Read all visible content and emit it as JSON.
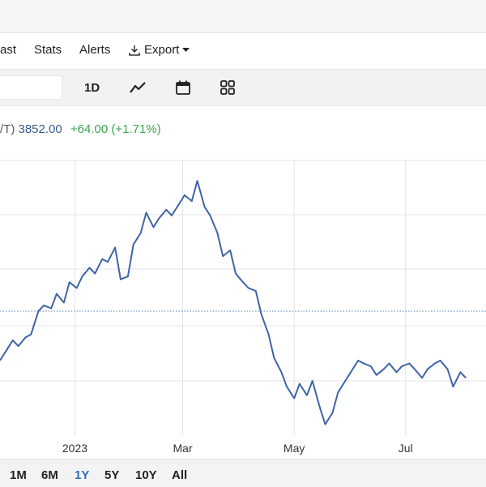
{
  "nav": {
    "items": [
      "ast",
      "Stats",
      "Alerts"
    ],
    "export_label": "Export"
  },
  "toolbar": {
    "interval_label": "1D",
    "icons": [
      "line-chart-icon",
      "calendar-icon",
      "grid-icon"
    ]
  },
  "quote": {
    "symbol_fragment": "/T)",
    "price": "3852.00",
    "change": "+64.00 (+1.71%)",
    "price_color": "#3a5b8c",
    "change_color": "#3fa34d"
  },
  "range": {
    "options": [
      "1M",
      "6M",
      "1Y",
      "5Y",
      "10Y",
      "All"
    ],
    "selected": "1Y",
    "active_color": "#2f6fbf"
  },
  "chart_data": {
    "type": "line",
    "line_color": "#3e64a6",
    "grid": true,
    "x_tick_labels": [
      "2023",
      "Mar",
      "May",
      "Jul"
    ],
    "x_tick_dates": [
      "2023-01-01",
      "2023-03-01",
      "2023-05-01",
      "2023-07-01"
    ],
    "reference_line": "dotted horizontal previous-close level",
    "series": [
      {
        "values": [
          [
            "2022-11-21",
            5.6
          ],
          [
            "2022-11-24",
            5.9
          ],
          [
            "2022-11-28",
            6.3
          ],
          [
            "2022-12-01",
            6.1
          ],
          [
            "2022-12-05",
            6.4
          ],
          [
            "2022-12-08",
            6.5
          ],
          [
            "2022-12-12",
            7.3
          ],
          [
            "2022-12-15",
            7.5
          ],
          [
            "2022-12-19",
            7.4
          ],
          [
            "2022-12-22",
            7.9
          ],
          [
            "2022-12-26",
            7.6
          ],
          [
            "2022-12-29",
            8.3
          ],
          [
            "2023-01-02",
            8.1
          ],
          [
            "2023-01-05",
            8.5
          ],
          [
            "2023-01-09",
            8.8
          ],
          [
            "2023-01-12",
            8.6
          ],
          [
            "2023-01-16",
            9.1
          ],
          [
            "2023-01-19",
            9.0
          ],
          [
            "2023-01-23",
            9.5
          ],
          [
            "2023-01-26",
            8.4
          ],
          [
            "2023-01-30",
            8.5
          ],
          [
            "2023-02-02",
            9.6
          ],
          [
            "2023-02-06",
            10.0
          ],
          [
            "2023-02-09",
            10.7
          ],
          [
            "2023-02-13",
            10.2
          ],
          [
            "2023-02-16",
            10.5
          ],
          [
            "2023-02-20",
            10.8
          ],
          [
            "2023-02-23",
            10.6
          ],
          [
            "2023-02-27",
            11.0
          ],
          [
            "2023-03-02",
            11.3
          ],
          [
            "2023-03-06",
            11.1
          ],
          [
            "2023-03-09",
            11.8
          ],
          [
            "2023-03-13",
            10.9
          ],
          [
            "2023-03-16",
            10.6
          ],
          [
            "2023-03-20",
            10.0
          ],
          [
            "2023-03-23",
            9.2
          ],
          [
            "2023-03-27",
            9.4
          ],
          [
            "2023-03-30",
            8.6
          ],
          [
            "2023-04-03",
            8.3
          ],
          [
            "2023-04-06",
            8.1
          ],
          [
            "2023-04-10",
            8.0
          ],
          [
            "2023-04-13",
            7.2
          ],
          [
            "2023-04-17",
            6.5
          ],
          [
            "2023-04-20",
            5.7
          ],
          [
            "2023-04-24",
            5.2
          ],
          [
            "2023-04-27",
            4.7
          ],
          [
            "2023-05-01",
            4.3
          ],
          [
            "2023-05-04",
            4.8
          ],
          [
            "2023-05-08",
            4.4
          ],
          [
            "2023-05-11",
            4.9
          ],
          [
            "2023-05-15",
            4.0
          ],
          [
            "2023-05-18",
            3.4
          ],
          [
            "2023-05-22",
            3.8
          ],
          [
            "2023-05-25",
            4.5
          ],
          [
            "2023-05-29",
            4.9
          ],
          [
            "2023-06-01",
            5.2
          ],
          [
            "2023-06-05",
            5.6
          ],
          [
            "2023-06-08",
            5.5
          ],
          [
            "2023-06-12",
            5.4
          ],
          [
            "2023-06-15",
            5.1
          ],
          [
            "2023-06-19",
            5.3
          ],
          [
            "2023-06-22",
            5.5
          ],
          [
            "2023-06-26",
            5.2
          ],
          [
            "2023-06-29",
            5.4
          ],
          [
            "2023-07-03",
            5.5
          ],
          [
            "2023-07-06",
            5.3
          ],
          [
            "2023-07-10",
            5.0
          ],
          [
            "2023-07-13",
            5.3
          ],
          [
            "2023-07-17",
            5.5
          ],
          [
            "2023-07-20",
            5.6
          ],
          [
            "2023-07-24",
            5.3
          ],
          [
            "2023-07-27",
            4.7
          ],
          [
            "2023-07-31",
            5.2
          ],
          [
            "2023-08-03",
            5.0
          ]
        ]
      }
    ]
  }
}
